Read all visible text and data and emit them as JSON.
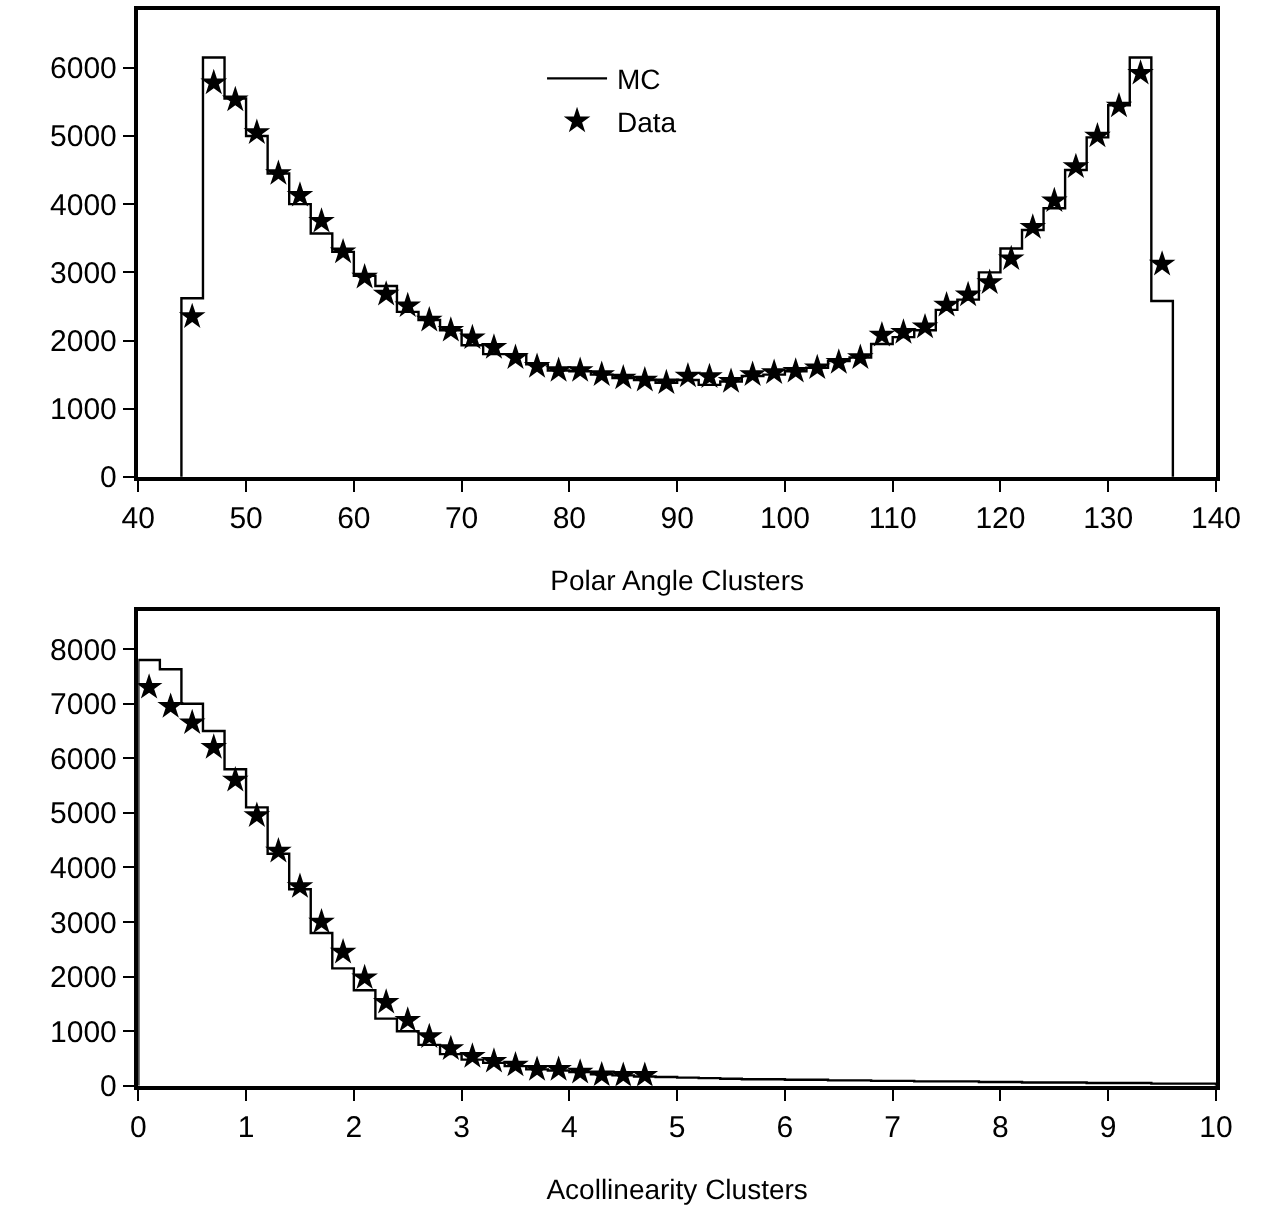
{
  "chart_data": [
    {
      "type": "histogram",
      "xlabel": "Polar Angle Clusters",
      "xlim": [
        40,
        140
      ],
      "xticks": [
        40,
        50,
        60,
        70,
        80,
        90,
        100,
        110,
        120,
        130,
        140
      ],
      "ylim": [
        0,
        6850
      ],
      "yticks": [
        0,
        1000,
        2000,
        3000,
        4000,
        5000,
        6000
      ],
      "legend": "top center",
      "bins": [
        44,
        46,
        48,
        50,
        52,
        54,
        56,
        58,
        60,
        62,
        64,
        66,
        68,
        70,
        72,
        74,
        76,
        78,
        80,
        82,
        84,
        86,
        88,
        90,
        92,
        94,
        96,
        98,
        100,
        102,
        104,
        106,
        108,
        110,
        112,
        114,
        116,
        118,
        120,
        122,
        124,
        126,
        128,
        130,
        132,
        134,
        136
      ],
      "series": [
        {
          "name": "MC",
          "color": "#000000",
          "line_style": "solid",
          "values": [
            2620,
            6150,
            5550,
            5000,
            4450,
            4000,
            3570,
            3300,
            2950,
            2800,
            2420,
            2300,
            2150,
            1930,
            1800,
            1800,
            1650,
            1560,
            1550,
            1500,
            1450,
            1420,
            1380,
            1420,
            1350,
            1400,
            1480,
            1500,
            1550,
            1600,
            1700,
            1750,
            1950,
            2050,
            2150,
            2450,
            2600,
            3000,
            3350,
            3620,
            3940,
            4500,
            4980,
            5450,
            6150,
            2580
          ]
        },
        {
          "name": "Data",
          "type": "scatter",
          "color": "#000000",
          "marker": "star",
          "x": [
            45,
            47,
            49,
            51,
            53,
            55,
            57,
            59,
            61,
            63,
            65,
            67,
            69,
            71,
            73,
            75,
            77,
            79,
            81,
            83,
            85,
            87,
            89,
            91,
            93,
            95,
            97,
            99,
            101,
            103,
            105,
            107,
            109,
            111,
            113,
            115,
            117,
            119,
            121,
            123,
            125,
            127,
            129,
            131,
            133,
            135
          ],
          "values": [
            2350,
            5780,
            5530,
            5050,
            4450,
            4130,
            3750,
            3300,
            2930,
            2680,
            2510,
            2300,
            2150,
            2040,
            1900,
            1750,
            1620,
            1560,
            1560,
            1500,
            1450,
            1420,
            1380,
            1480,
            1470,
            1400,
            1500,
            1530,
            1550,
            1600,
            1680,
            1750,
            2080,
            2120,
            2200,
            2520,
            2670,
            2850,
            3200,
            3660,
            4050,
            4550,
            5000,
            5440,
            5920,
            3120
          ]
        }
      ]
    },
    {
      "type": "histogram",
      "xlabel": "Acollinearity Clusters",
      "xlim": [
        0,
        10
      ],
      "xticks": [
        0,
        1,
        2,
        3,
        4,
        5,
        6,
        7,
        8,
        9,
        10
      ],
      "ylim": [
        0,
        8700
      ],
      "yticks": [
        0,
        1000,
        2000,
        3000,
        4000,
        5000,
        6000,
        7000,
        8000
      ],
      "bins": [
        0,
        0.2,
        0.4,
        0.6,
        0.8,
        1,
        1.2,
        1.4,
        1.6,
        1.8,
        2,
        2.2,
        2.4,
        2.6,
        2.8,
        3,
        3.2,
        3.4,
        3.6,
        3.8,
        4,
        4.2,
        4.4,
        4.6,
        4.8,
        5,
        5.2,
        5.4,
        5.6,
        5.8,
        6,
        6.2,
        6.4,
        6.6,
        6.8,
        7,
        7.2,
        7.4,
        7.6,
        7.8,
        8,
        8.2,
        8.4,
        8.6,
        8.8,
        9,
        9.2,
        9.4,
        9.6,
        9.8,
        10
      ],
      "series": [
        {
          "color": "#000000",
          "line_style": "solid",
          "values": [
            7800,
            7630,
            7000,
            6500,
            5800,
            5100,
            4250,
            3600,
            2800,
            2150,
            1750,
            1230,
            1000,
            750,
            580,
            480,
            420,
            360,
            300,
            280,
            250,
            210,
            190,
            170,
            160,
            150,
            140,
            130,
            120,
            120,
            110,
            110,
            100,
            100,
            90,
            90,
            80,
            80,
            80,
            70,
            70,
            60,
            60,
            60,
            50,
            50,
            50,
            40,
            40,
            40
          ]
        },
        {
          "type": "scatter",
          "color": "#000000",
          "marker": "star",
          "x": [
            0.1,
            0.3,
            0.5,
            0.7,
            0.9,
            1.1,
            1.3,
            1.5,
            1.7,
            1.9,
            2.1,
            2.3,
            2.5,
            2.7,
            2.9,
            3.1,
            3.3,
            3.5,
            3.7,
            3.9,
            4.1,
            4.3,
            4.5,
            4.7
          ],
          "values": [
            7300,
            6950,
            6650,
            6200,
            5600,
            4950,
            4300,
            3650,
            3000,
            2450,
            1980,
            1530,
            1200,
            900,
            680,
            540,
            450,
            380,
            300,
            300,
            250,
            200,
            190,
            190
          ]
        }
      ]
    }
  ]
}
